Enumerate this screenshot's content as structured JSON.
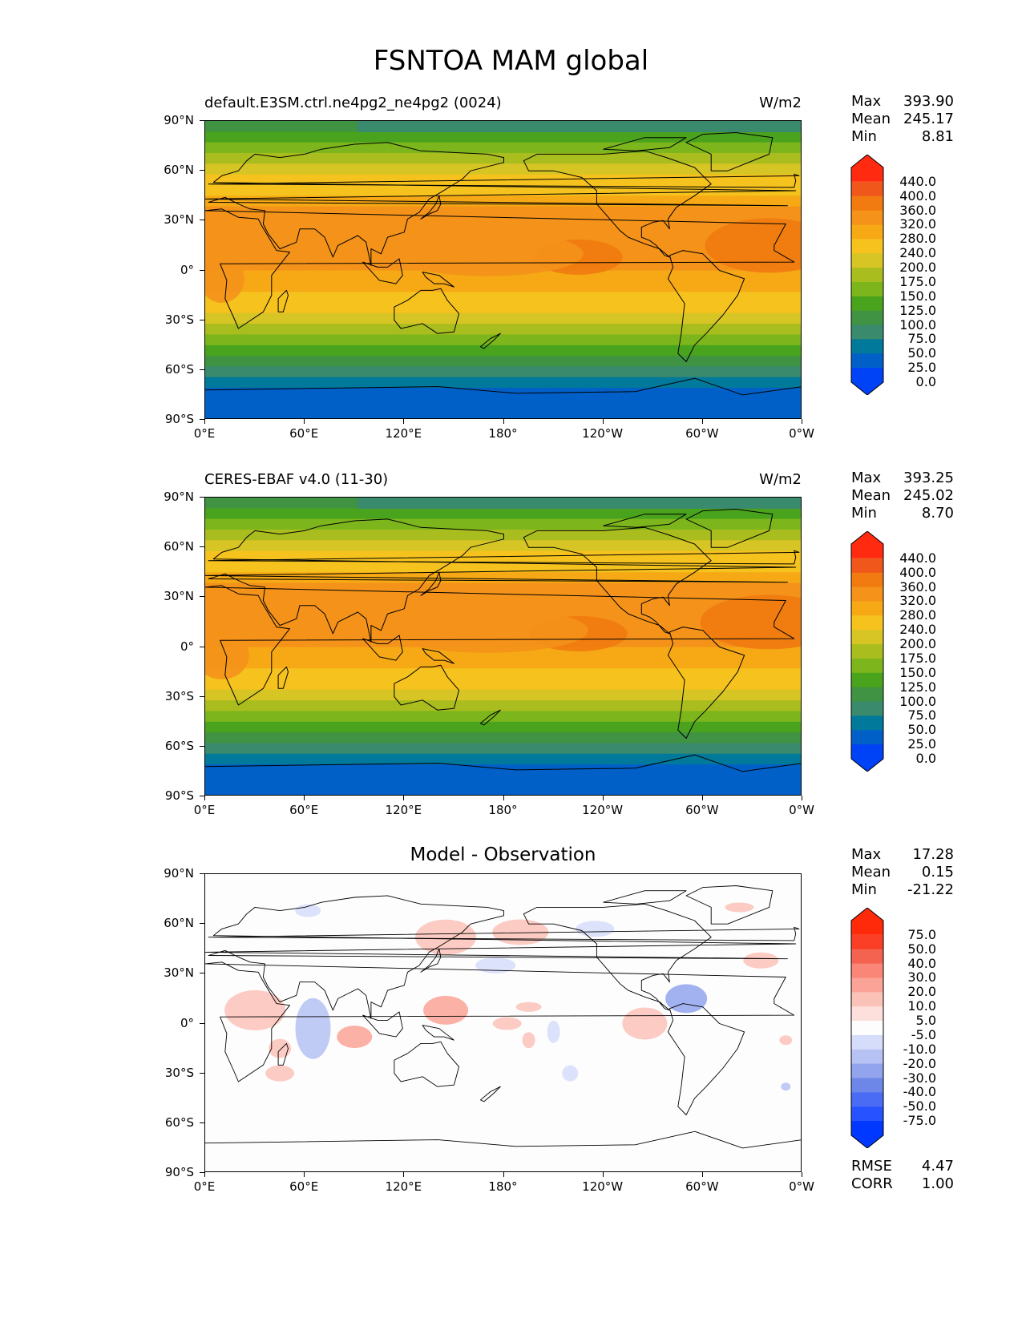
{
  "main_title": "FSNTOA MAM global",
  "x_ticks": [
    "0°E",
    "60°E",
    "120°E",
    "180°",
    "120°W",
    "60°W",
    "0°W"
  ],
  "y_ticks": [
    "90°N",
    "60°N",
    "30°N",
    "0°",
    "30°S",
    "60°S",
    "90°S"
  ],
  "panels": [
    {
      "title_left": "default.E3SM.ctrl.ne4pg2_ne4pg2 (0024)",
      "title_right": "W/m2",
      "stats": {
        "max_label": "Max",
        "max": "393.90",
        "mean_label": "Mean",
        "mean": "245.17",
        "min_label": "Min",
        "min": "8.81"
      },
      "colorbar_labels": [
        "440.0",
        "400.0",
        "360.0",
        "320.0",
        "280.0",
        "240.0",
        "200.0",
        "175.0",
        "150.0",
        "125.0",
        "100.0",
        "75.0",
        "50.0",
        "25.0",
        "0.0"
      ]
    },
    {
      "title_left": "CERES-EBAF v4.0 (11-30)",
      "title_right": "W/m2",
      "stats": {
        "max_label": "Max",
        "max": "393.25",
        "mean_label": "Mean",
        "mean": "245.02",
        "min_label": "Min",
        "min": "8.70"
      },
      "colorbar_labels": [
        "440.0",
        "400.0",
        "360.0",
        "320.0",
        "280.0",
        "240.0",
        "200.0",
        "175.0",
        "150.0",
        "125.0",
        "100.0",
        "75.0",
        "50.0",
        "25.0",
        "0.0"
      ]
    },
    {
      "title_center": "Model - Observation",
      "stats": {
        "max_label": "Max",
        "max": "17.28",
        "mean_label": "Mean",
        "mean": "0.15",
        "min_label": "Min",
        "min": "-21.22"
      },
      "colorbar_labels": [
        "75.0",
        "50.0",
        "40.0",
        "30.0",
        "20.0",
        "10.0",
        "5.0",
        "-5.0",
        "-10.0",
        "-20.0",
        "-30.0",
        "-40.0",
        "-50.0",
        "-75.0"
      ],
      "rmse_label": "RMSE",
      "rmse": "4.47",
      "corr_label": "CORR",
      "corr": "1.00"
    }
  ],
  "colors": {
    "field_scale": [
      "#0042f5",
      "#0060c8",
      "#00799a",
      "#3a8a6e",
      "#3f9342",
      "#4aa31c",
      "#7cb61c",
      "#aabd1e",
      "#d6c524",
      "#f5c21e",
      "#f6a915",
      "#f4921a",
      "#f17b10",
      "#f0571b",
      "#ff2a10"
    ],
    "diff_scale": [
      "#0038ff",
      "#2652ff",
      "#4a6cf5",
      "#6d87e8",
      "#92a4ee",
      "#b5c2f3",
      "#d6ddfa",
      "#fdfdfd",
      "#fde0dc",
      "#fbc2b8",
      "#fba396",
      "#f98676",
      "#f46350",
      "#fb3f26",
      "#ff2a0a"
    ]
  }
}
